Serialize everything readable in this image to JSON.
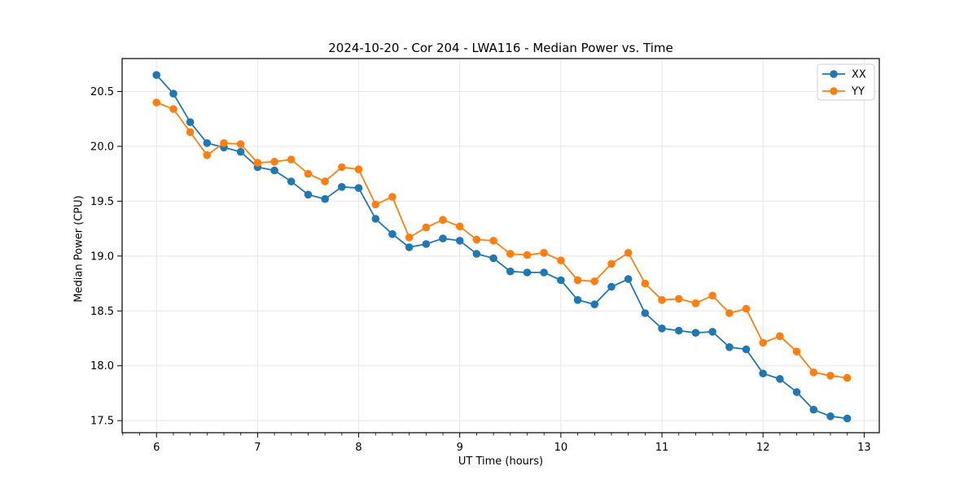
{
  "figure": {
    "background": "#ffffff",
    "spine_color": "#000000",
    "grid_color": "#e6e6e6",
    "tick_color": "#000000"
  },
  "chart_data": {
    "type": "line",
    "title": "2024-10-20 - Cor 204 - LWA116 - Median Power vs. Time",
    "xlabel": "UT Time (hours)",
    "ylabel": "Median Power (CPU)",
    "xlim": [
      5.66,
      13.15
    ],
    "ylim": [
      17.39,
      20.8
    ],
    "grid": true,
    "legend_position": "top-right",
    "xticks": [
      6,
      7,
      8,
      9,
      10,
      11,
      12,
      13
    ],
    "xtick_labels": [
      "6",
      "7",
      "8",
      "9",
      "10",
      "11",
      "12",
      "13"
    ],
    "x_minor_step": 0.16667,
    "yticks": [
      17.5,
      18.0,
      18.5,
      19.0,
      19.5,
      20.0,
      20.5
    ],
    "ytick_labels": [
      "17.5",
      "18.0",
      "18.5",
      "19.0",
      "19.5",
      "20.0",
      "20.5"
    ],
    "x": [
      6.0,
      6.167,
      6.333,
      6.5,
      6.667,
      6.833,
      7.0,
      7.167,
      7.333,
      7.5,
      7.667,
      7.833,
      8.0,
      8.167,
      8.333,
      8.5,
      8.667,
      8.833,
      9.0,
      9.167,
      9.333,
      9.5,
      9.667,
      9.833,
      10.0,
      10.167,
      10.333,
      10.5,
      10.667,
      10.833,
      11.0,
      11.167,
      11.333,
      11.5,
      11.667,
      11.833,
      12.0,
      12.167,
      12.333,
      12.5,
      12.667,
      12.833
    ],
    "series": [
      {
        "name": "XX",
        "color": "#1f77b4",
        "values": [
          20.65,
          20.48,
          20.22,
          20.03,
          19.99,
          19.95,
          19.81,
          19.78,
          19.68,
          19.56,
          19.52,
          19.63,
          19.62,
          19.34,
          19.2,
          19.08,
          19.11,
          19.16,
          19.14,
          19.02,
          18.98,
          18.86,
          18.85,
          18.85,
          18.78,
          18.6,
          18.56,
          18.72,
          18.79,
          18.48,
          18.34,
          18.32,
          18.3,
          18.31,
          18.17,
          18.15,
          17.93,
          17.88,
          17.76,
          17.6,
          17.54,
          17.52
        ]
      },
      {
        "name": "YY",
        "color": "#ff7f0e",
        "values": [
          20.4,
          20.34,
          20.13,
          19.92,
          20.03,
          20.02,
          19.85,
          19.86,
          19.88,
          19.75,
          19.68,
          19.81,
          19.79,
          19.47,
          19.54,
          19.17,
          19.26,
          19.33,
          19.27,
          19.15,
          19.14,
          19.02,
          19.01,
          19.03,
          18.96,
          18.78,
          18.77,
          18.93,
          19.03,
          18.75,
          18.6,
          18.61,
          18.57,
          18.64,
          18.48,
          18.52,
          18.21,
          18.27,
          18.13,
          17.94,
          17.91,
          17.89
        ]
      }
    ]
  }
}
